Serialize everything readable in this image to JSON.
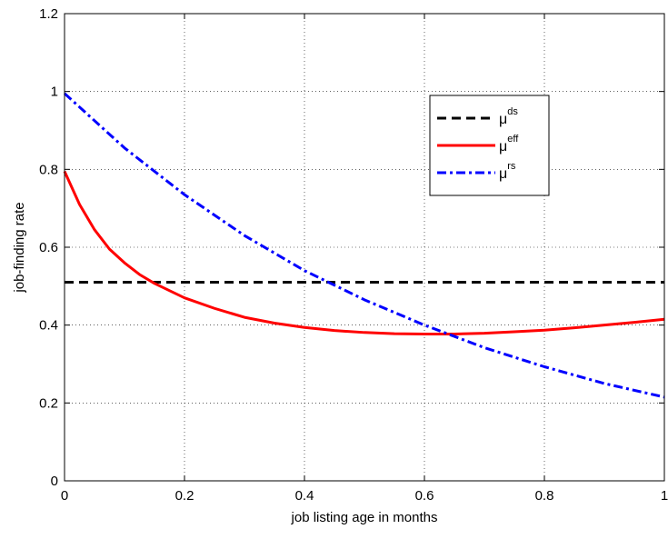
{
  "chart_data": {
    "type": "line",
    "title": "",
    "xlabel": "job listing age in months",
    "ylabel": "job-finding rate",
    "xlim": [
      0,
      1
    ],
    "ylim": [
      0,
      1.2
    ],
    "xticks": [
      0,
      0.2,
      0.4,
      0.6,
      0.8,
      1
    ],
    "xtick_labels": [
      "0",
      "0.2",
      "0.4",
      "0.6",
      "0.8",
      "1"
    ],
    "yticks": [
      0,
      0.2,
      0.4,
      0.6,
      0.8,
      1,
      1.2
    ],
    "ytick_labels": [
      "0",
      "0.2",
      "0.4",
      "0.6",
      "0.8",
      "1",
      "1.2"
    ],
    "grid": true,
    "legend_position": "top-right",
    "series": [
      {
        "name": "μ",
        "sup": "ds",
        "color": "#000000",
        "dash": "dashed",
        "x": [
          0,
          0.1,
          0.2,
          0.3,
          0.4,
          0.5,
          0.6,
          0.7,
          0.8,
          0.9,
          1.0
        ],
        "y": [
          0.51,
          0.51,
          0.51,
          0.51,
          0.51,
          0.51,
          0.51,
          0.51,
          0.51,
          0.51,
          0.51
        ]
      },
      {
        "name": "μ",
        "sup": "eff",
        "color": "#ff0000",
        "dash": "solid",
        "x": [
          0,
          0.025,
          0.05,
          0.075,
          0.1,
          0.125,
          0.15,
          0.2,
          0.25,
          0.3,
          0.35,
          0.4,
          0.45,
          0.5,
          0.55,
          0.6,
          0.65,
          0.7,
          0.75,
          0.8,
          0.85,
          0.9,
          0.95,
          1.0
        ],
        "y": [
          0.795,
          0.71,
          0.645,
          0.595,
          0.56,
          0.53,
          0.507,
          0.47,
          0.443,
          0.42,
          0.405,
          0.394,
          0.386,
          0.381,
          0.378,
          0.377,
          0.377,
          0.379,
          0.383,
          0.387,
          0.393,
          0.4,
          0.407,
          0.415
        ]
      },
      {
        "name": "μ",
        "sup": "rs",
        "color": "#0000ff",
        "dash": "dashdot",
        "x": [
          0,
          0.1,
          0.2,
          0.3,
          0.4,
          0.5,
          0.6,
          0.7,
          0.8,
          0.9,
          1.0
        ],
        "y": [
          0.995,
          0.855,
          0.735,
          0.63,
          0.54,
          0.465,
          0.4,
          0.342,
          0.293,
          0.25,
          0.215
        ]
      }
    ]
  }
}
